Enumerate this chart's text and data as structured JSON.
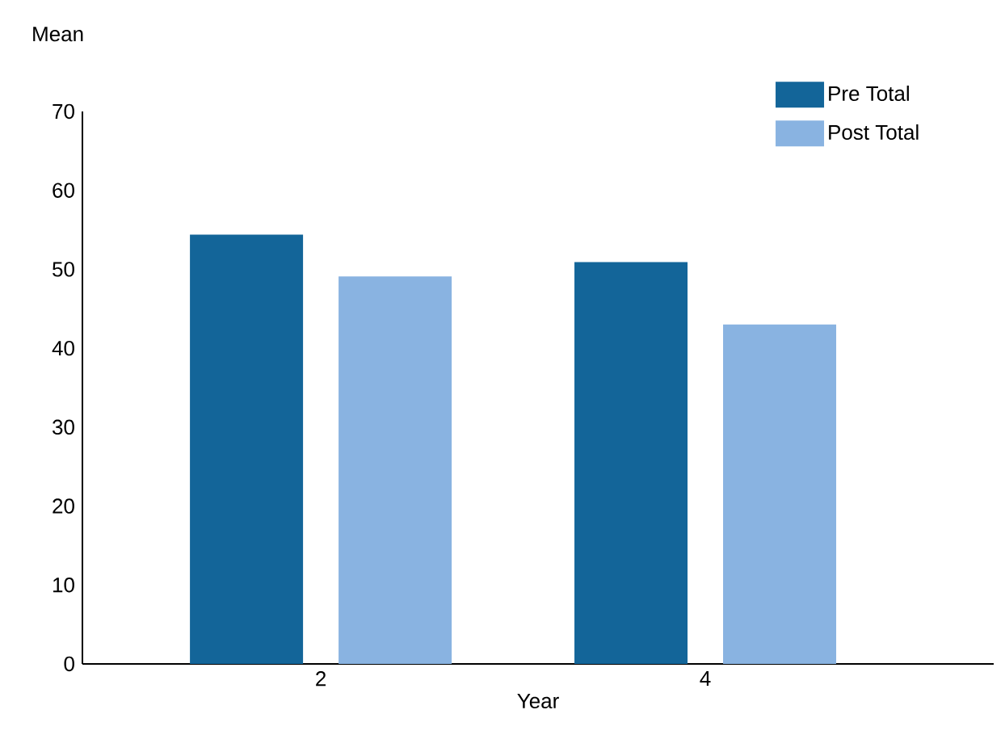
{
  "chart_data": {
    "type": "bar",
    "xlabel": "Year",
    "ylabel": "Mean",
    "categories": [
      "2",
      "4"
    ],
    "series": [
      {
        "name": "Pre Total",
        "color": "#136599",
        "values": [
          54.4,
          50.9
        ]
      },
      {
        "name": "Post Total",
        "color": "#89b3e1",
        "values": [
          49.1,
          43.0
        ]
      }
    ],
    "ylim": [
      0,
      70
    ],
    "yticks": [
      0,
      10,
      20,
      30,
      40,
      50,
      60,
      70
    ],
    "grid": false,
    "legend": "top right"
  }
}
